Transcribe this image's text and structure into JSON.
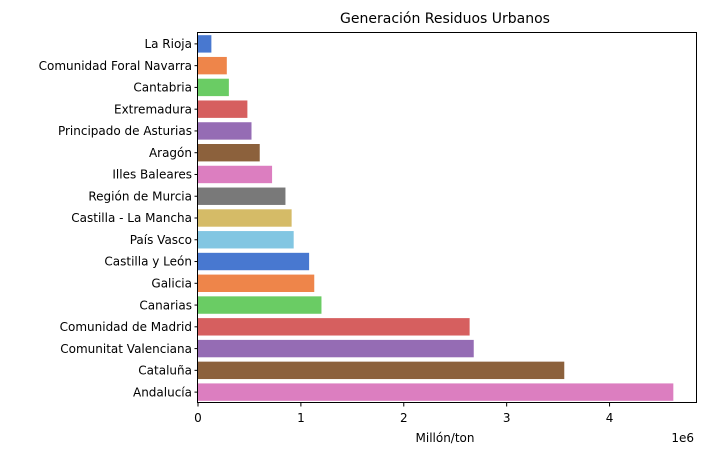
{
  "chart_data": {
    "type": "bar",
    "orientation": "horizontal",
    "title": "Generación Residuos Urbanos",
    "xlabel": "Millón/ton",
    "ylabel": "",
    "x_offset_label": "1e6",
    "x_ticks": [
      0,
      1000000,
      2000000,
      3000000,
      4000000
    ],
    "x_tick_labels": [
      "0",
      "1",
      "2",
      "3",
      "4"
    ],
    "xlim": [
      0,
      4850000
    ],
    "grid": false,
    "categories": [
      "La Rioja",
      "Comunidad Foral Navarra",
      "Cantabria",
      "Extremadura",
      "Principado de Asturias",
      "Aragón",
      "Illes Baleares",
      "Región de Murcia",
      "Castilla - La Mancha",
      "País Vasco",
      "Castilla y León",
      "Galicia",
      "Canarias",
      "Comunidad de Madrid",
      "Comunitat Valenciana",
      "Cataluña",
      "Andalucía"
    ],
    "values": [
      130000,
      280000,
      300000,
      480000,
      520000,
      600000,
      720000,
      850000,
      910000,
      930000,
      1080000,
      1130000,
      1200000,
      2640000,
      2680000,
      3560000,
      4620000
    ],
    "colors": [
      "#4878d0",
      "#ee854a",
      "#6acc64",
      "#d65f5f",
      "#956cb4",
      "#8c613c",
      "#dc7ec0",
      "#797979",
      "#d5bb67",
      "#82c6e2",
      "#4878d0",
      "#ee854a",
      "#6acc64",
      "#d65f5f",
      "#956cb4",
      "#8c613c",
      "#dc7ec0"
    ]
  }
}
